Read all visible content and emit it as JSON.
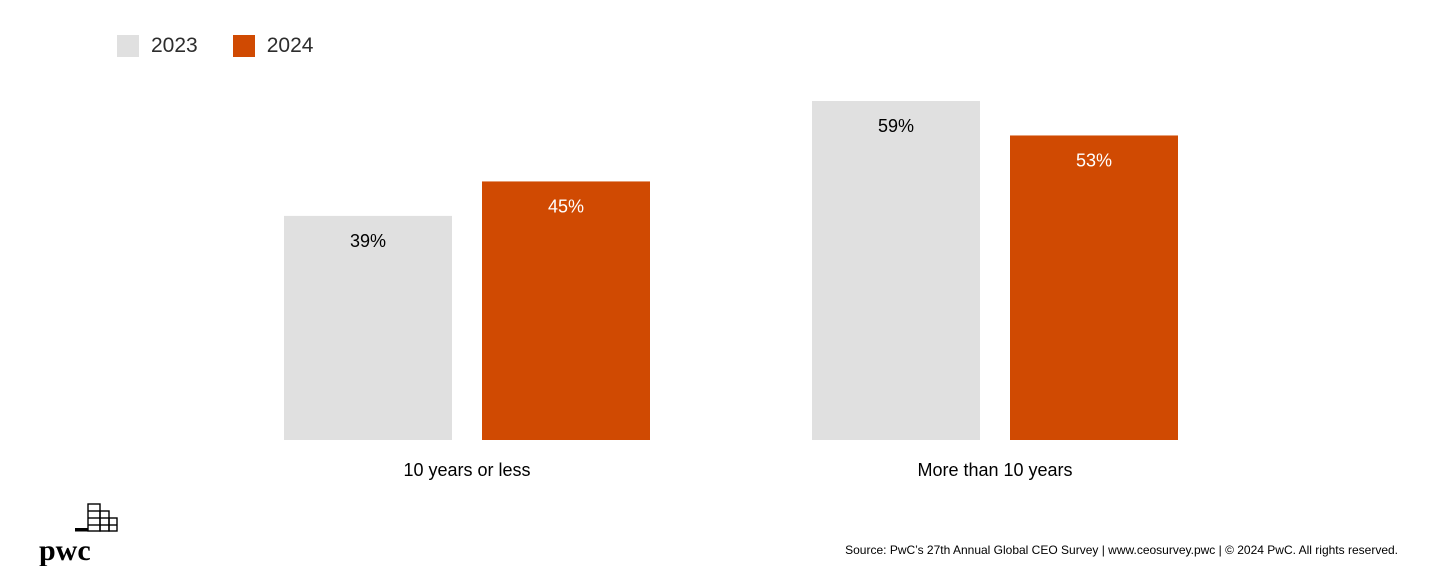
{
  "legend": {
    "items": [
      {
        "label": "2023",
        "color": "#e0e0e0"
      },
      {
        "label": "2024",
        "color": "#d04a02"
      }
    ]
  },
  "chart_data": {
    "type": "bar",
    "categories": [
      "10 years or less",
      "More than 10 years"
    ],
    "series": [
      {
        "name": "2023",
        "values": [
          39,
          59
        ],
        "labels": [
          "39%",
          "59%"
        ],
        "color": "#e0e0e0",
        "label_color": "#000000"
      },
      {
        "name": "2024",
        "values": [
          45,
          53
        ],
        "labels": [
          "45%",
          "53%"
        ],
        "color": "#d04a02",
        "label_color": "#ffffff"
      }
    ],
    "unit": "%",
    "ylim": [
      0,
      59
    ],
    "grid": false,
    "legend_position": "top-left"
  },
  "logo": {
    "text": "pwc",
    "icon": "pwc-logo-icon"
  },
  "footer": {
    "source": "Source: PwC’s 27th Annual Global CEO Survey  |  www.ceosurvey.pwc  |  © 2024 PwC. All rights reserved."
  }
}
